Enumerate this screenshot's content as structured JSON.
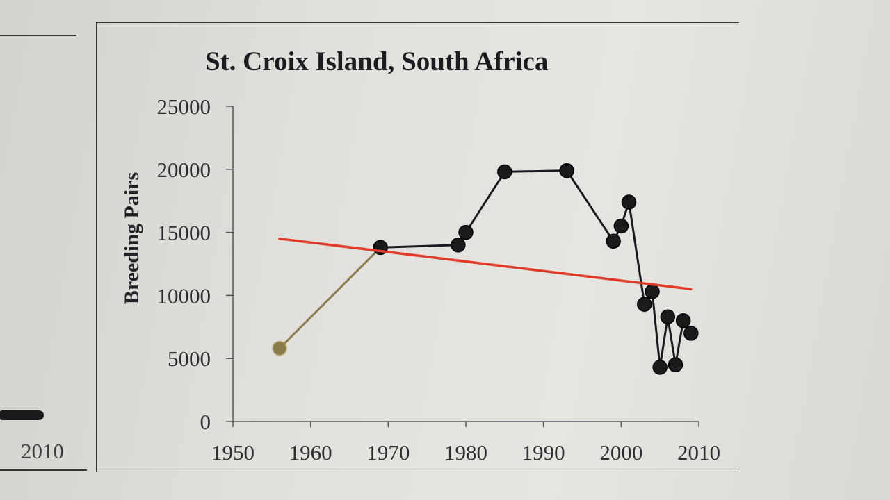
{
  "left_panel": {
    "x_tick_label": "2010"
  },
  "chart_data": {
    "type": "line",
    "title": "St. Croix Island, South Africa",
    "xlabel": "",
    "ylabel": "Breeding Pairs",
    "xlim": [
      1950,
      2010
    ],
    "ylim": [
      0,
      25000
    ],
    "x_ticks": [
      "1950",
      "1960",
      "1970",
      "1980",
      "1990",
      "2000",
      "2010"
    ],
    "y_ticks": [
      "0",
      "5000",
      "10000",
      "15000",
      "20000",
      "25000"
    ],
    "grid": false,
    "legend": "none",
    "series": [
      {
        "color": "#8a7a48",
        "x": [
          1956,
          1969
        ],
        "y": [
          5800,
          13800
        ]
      },
      {
        "color": "#1a1a1a",
        "x": [
          1969,
          1979,
          1980,
          1985,
          1993,
          1999,
          2000,
          2001,
          2003,
          2004,
          2005,
          2006,
          2007,
          2008,
          2009
        ],
        "y": [
          13800,
          14000,
          15000,
          19800,
          19900,
          14300,
          15500,
          17400,
          9300,
          10300,
          4300,
          8300,
          4500,
          8000,
          7000
        ]
      },
      {
        "color": "#e03a2a",
        "style": "trend",
        "x": [
          1956,
          2009
        ],
        "y": [
          14500,
          10500
        ]
      }
    ]
  }
}
